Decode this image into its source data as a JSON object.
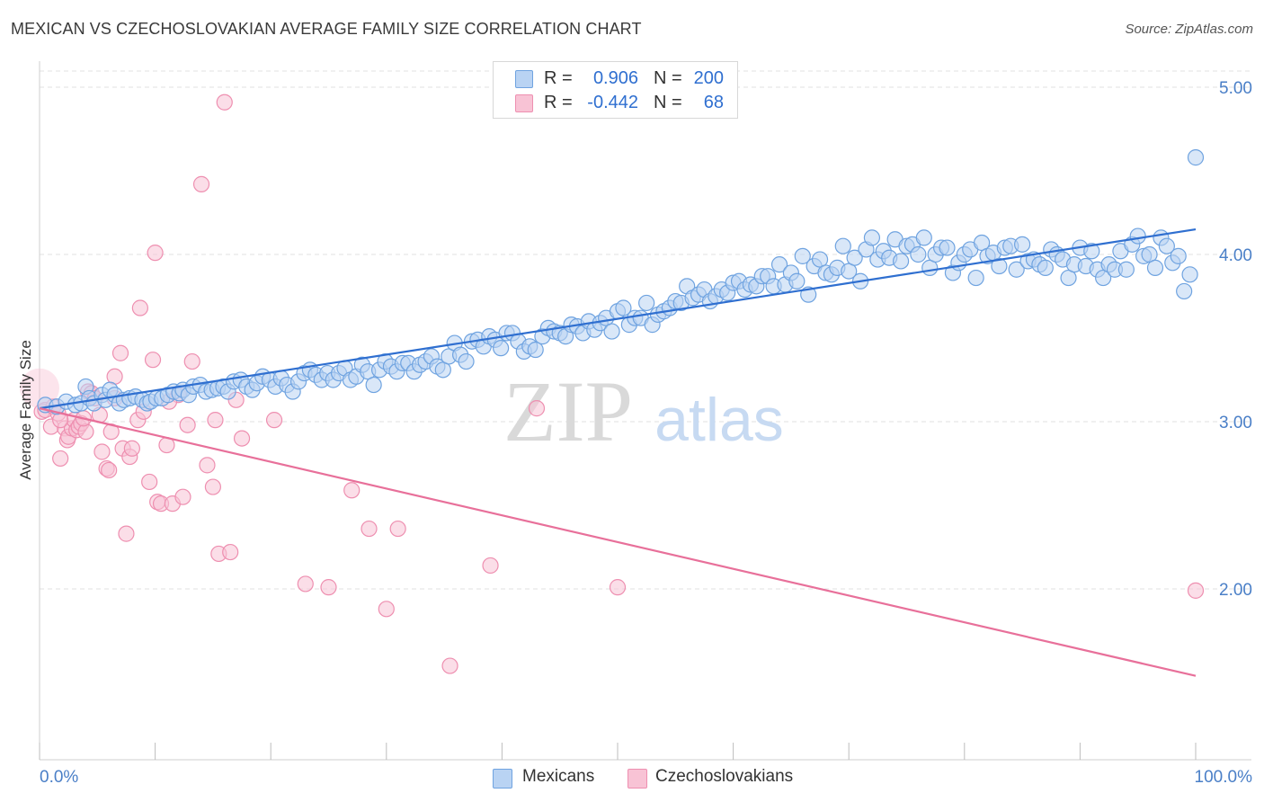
{
  "title": "MEXICAN VS CZECHOSLOVAKIAN AVERAGE FAMILY SIZE CORRELATION CHART",
  "source": "Source: ZipAtlas.com",
  "watermark": {
    "zip": "ZIP",
    "atlas": "atlas"
  },
  "legend": {
    "rows": [
      {
        "r_label": "R =",
        "r_value": "0.906",
        "n_label": "N =",
        "n_value": "200"
      },
      {
        "r_label": "R =",
        "r_value": "-0.442",
        "n_label": "N =",
        "n_value": "68"
      }
    ]
  },
  "bottom_legend": [
    "Mexicans",
    "Czechoslovakians"
  ],
  "colors": {
    "mexicans": "#6fa3e0",
    "mexicans_fill": "#b9d3f3",
    "mexicans_line": "#2f6fd0",
    "czech": "#ee8fb0",
    "czech_fill": "#f8c3d5",
    "czech_line": "#e8709a",
    "tick_label": "#4a7fc7",
    "grid": "#e2e2e2"
  },
  "chart_data": {
    "type": "scatter",
    "ylabel": "Average Family Size",
    "xlim": [
      0,
      100
    ],
    "ylim": [
      1.2,
      5.1
    ],
    "x_tick_labels": [
      "0.0%",
      "100.0%"
    ],
    "y_ticks": [
      2.0,
      3.0,
      4.0,
      5.0
    ],
    "y_tick_labels": [
      "2.00",
      "3.00",
      "4.00",
      "5.00"
    ],
    "grid": true,
    "series": [
      {
        "name": "Mexicans",
        "trend": {
          "x": [
            0,
            100
          ],
          "y": [
            3.08,
            4.15
          ]
        },
        "points": [
          [
            0.5,
            3.1
          ],
          [
            1.5,
            3.09
          ],
          [
            2.3,
            3.12
          ],
          [
            3.1,
            3.1
          ],
          [
            3.6,
            3.11
          ],
          [
            4.0,
            3.21
          ],
          [
            4.3,
            3.14
          ],
          [
            4.7,
            3.11
          ],
          [
            5.4,
            3.16
          ],
          [
            5.7,
            3.13
          ],
          [
            6.1,
            3.19
          ],
          [
            6.5,
            3.16
          ],
          [
            6.9,
            3.11
          ],
          [
            7.3,
            3.13
          ],
          [
            7.8,
            3.14
          ],
          [
            8.3,
            3.15
          ],
          [
            8.9,
            3.13
          ],
          [
            9.3,
            3.11
          ],
          [
            9.6,
            3.12
          ],
          [
            10.1,
            3.14
          ],
          [
            10.6,
            3.14
          ],
          [
            11.1,
            3.16
          ],
          [
            11.6,
            3.18
          ],
          [
            12.1,
            3.17
          ],
          [
            12.4,
            3.19
          ],
          [
            12.9,
            3.16
          ],
          [
            13.3,
            3.21
          ],
          [
            13.9,
            3.22
          ],
          [
            14.4,
            3.18
          ],
          [
            14.9,
            3.19
          ],
          [
            15.4,
            3.2
          ],
          [
            15.9,
            3.21
          ],
          [
            16.3,
            3.18
          ],
          [
            16.8,
            3.24
          ],
          [
            17.4,
            3.25
          ],
          [
            17.9,
            3.21
          ],
          [
            18.4,
            3.19
          ],
          [
            18.8,
            3.23
          ],
          [
            19.3,
            3.27
          ],
          [
            19.9,
            3.25
          ],
          [
            20.4,
            3.21
          ],
          [
            20.9,
            3.26
          ],
          [
            21.4,
            3.22
          ],
          [
            21.9,
            3.18
          ],
          [
            22.4,
            3.24
          ],
          [
            22.9,
            3.29
          ],
          [
            23.4,
            3.31
          ],
          [
            23.9,
            3.28
          ],
          [
            24.4,
            3.25
          ],
          [
            24.9,
            3.29
          ],
          [
            25.4,
            3.25
          ],
          [
            25.9,
            3.29
          ],
          [
            26.4,
            3.32
          ],
          [
            26.9,
            3.25
          ],
          [
            27.4,
            3.27
          ],
          [
            27.9,
            3.34
          ],
          [
            28.4,
            3.3
          ],
          [
            28.9,
            3.22
          ],
          [
            29.4,
            3.31
          ],
          [
            29.9,
            3.36
          ],
          [
            30.4,
            3.33
          ],
          [
            30.9,
            3.3
          ],
          [
            31.4,
            3.35
          ],
          [
            31.9,
            3.35
          ],
          [
            32.4,
            3.3
          ],
          [
            32.9,
            3.34
          ],
          [
            33.4,
            3.36
          ],
          [
            33.9,
            3.39
          ],
          [
            34.4,
            3.33
          ],
          [
            34.9,
            3.31
          ],
          [
            35.4,
            3.39
          ],
          [
            35.9,
            3.47
          ],
          [
            36.4,
            3.4
          ],
          [
            36.9,
            3.36
          ],
          [
            37.4,
            3.48
          ],
          [
            37.9,
            3.49
          ],
          [
            38.4,
            3.45
          ],
          [
            38.9,
            3.51
          ],
          [
            39.4,
            3.49
          ],
          [
            39.9,
            3.44
          ],
          [
            40.4,
            3.53
          ],
          [
            40.9,
            3.53
          ],
          [
            41.4,
            3.48
          ],
          [
            41.9,
            3.42
          ],
          [
            42.4,
            3.45
          ],
          [
            42.9,
            3.43
          ],
          [
            43.5,
            3.51
          ],
          [
            44.0,
            3.56
          ],
          [
            44.5,
            3.54
          ],
          [
            45.0,
            3.53
          ],
          [
            45.5,
            3.51
          ],
          [
            46.0,
            3.58
          ],
          [
            46.5,
            3.57
          ],
          [
            47.0,
            3.53
          ],
          [
            47.5,
            3.6
          ],
          [
            48.0,
            3.55
          ],
          [
            48.5,
            3.59
          ],
          [
            49.0,
            3.62
          ],
          [
            49.5,
            3.54
          ],
          [
            50.0,
            3.66
          ],
          [
            50.5,
            3.68
          ],
          [
            51.0,
            3.58
          ],
          [
            51.5,
            3.62
          ],
          [
            52.0,
            3.62
          ],
          [
            52.5,
            3.71
          ],
          [
            53.0,
            3.58
          ],
          [
            53.5,
            3.64
          ],
          [
            54.0,
            3.66
          ],
          [
            54.5,
            3.68
          ],
          [
            55.0,
            3.72
          ],
          [
            55.5,
            3.71
          ],
          [
            56.0,
            3.81
          ],
          [
            56.5,
            3.74
          ],
          [
            57.0,
            3.76
          ],
          [
            57.5,
            3.79
          ],
          [
            58.0,
            3.72
          ],
          [
            58.5,
            3.75
          ],
          [
            59.0,
            3.79
          ],
          [
            59.5,
            3.77
          ],
          [
            60.0,
            3.83
          ],
          [
            60.5,
            3.84
          ],
          [
            61.0,
            3.79
          ],
          [
            61.5,
            3.82
          ],
          [
            62.0,
            3.81
          ],
          [
            62.5,
            3.87
          ],
          [
            63.0,
            3.87
          ],
          [
            63.5,
            3.81
          ],
          [
            64.0,
            3.94
          ],
          [
            64.5,
            3.82
          ],
          [
            65.0,
            3.89
          ],
          [
            65.5,
            3.84
          ],
          [
            66.0,
            3.99
          ],
          [
            66.5,
            3.76
          ],
          [
            67.0,
            3.93
          ],
          [
            67.5,
            3.97
          ],
          [
            68.0,
            3.89
          ],
          [
            68.5,
            3.88
          ],
          [
            69.0,
            3.92
          ],
          [
            69.5,
            4.05
          ],
          [
            70.0,
            3.9
          ],
          [
            70.5,
            3.98
          ],
          [
            71.0,
            3.84
          ],
          [
            71.5,
            4.03
          ],
          [
            72.0,
            4.1
          ],
          [
            72.5,
            3.97
          ],
          [
            73.0,
            4.02
          ],
          [
            73.5,
            3.98
          ],
          [
            74.0,
            4.09
          ],
          [
            74.5,
            3.96
          ],
          [
            75.0,
            4.05
          ],
          [
            75.5,
            4.06
          ],
          [
            76.0,
            4.0
          ],
          [
            76.5,
            4.1
          ],
          [
            77.0,
            3.92
          ],
          [
            77.5,
            4.0
          ],
          [
            78.0,
            4.04
          ],
          [
            78.5,
            4.04
          ],
          [
            79.0,
            3.89
          ],
          [
            79.5,
            3.95
          ],
          [
            80.0,
            4.0
          ],
          [
            80.5,
            4.03
          ],
          [
            81.0,
            3.86
          ],
          [
            81.5,
            4.07
          ],
          [
            82.0,
            3.99
          ],
          [
            82.5,
            4.01
          ],
          [
            83.0,
            3.93
          ],
          [
            83.5,
            4.04
          ],
          [
            84.0,
            4.05
          ],
          [
            84.5,
            3.91
          ],
          [
            85.0,
            4.06
          ],
          [
            85.5,
            3.96
          ],
          [
            86.0,
            3.97
          ],
          [
            86.5,
            3.94
          ],
          [
            87.0,
            3.92
          ],
          [
            87.5,
            4.03
          ],
          [
            88.0,
            4.0
          ],
          [
            88.5,
            3.97
          ],
          [
            89.0,
            3.86
          ],
          [
            89.5,
            3.94
          ],
          [
            90.0,
            4.04
          ],
          [
            90.5,
            3.93
          ],
          [
            91.0,
            4.02
          ],
          [
            91.5,
            3.91
          ],
          [
            92.0,
            3.86
          ],
          [
            92.5,
            3.94
          ],
          [
            93.0,
            3.91
          ],
          [
            93.5,
            4.02
          ],
          [
            94.0,
            3.91
          ],
          [
            94.5,
            4.06
          ],
          [
            95.0,
            4.11
          ],
          [
            95.5,
            3.99
          ],
          [
            96.0,
            4.0
          ],
          [
            96.5,
            3.92
          ],
          [
            97.0,
            4.1
          ],
          [
            97.5,
            4.05
          ],
          [
            98.0,
            3.95
          ],
          [
            98.5,
            3.99
          ],
          [
            99.0,
            3.78
          ],
          [
            99.5,
            3.88
          ],
          [
            100,
            4.58
          ]
        ]
      },
      {
        "name": "Czechoslovakians",
        "trend": {
          "x": [
            0,
            100
          ],
          "y": [
            3.08,
            1.48
          ]
        },
        "points": [
          [
            0.2,
            3.06
          ],
          [
            0.5,
            3.07
          ],
          [
            1.0,
            2.97
          ],
          [
            1.2,
            3.09
          ],
          [
            1.6,
            3.05
          ],
          [
            1.8,
            2.78
          ],
          [
            2.2,
            2.96
          ],
          [
            2.4,
            2.89
          ],
          [
            2.5,
            2.91
          ],
          [
            2.8,
            2.96
          ],
          [
            3.0,
            3.01
          ],
          [
            3.2,
            2.95
          ],
          [
            3.4,
            2.97
          ],
          [
            3.6,
            2.99
          ],
          [
            4.0,
            2.94
          ],
          [
            4.2,
            3.18
          ],
          [
            4.5,
            3.17
          ],
          [
            4.8,
            3.14
          ],
          [
            5.2,
            3.04
          ],
          [
            5.4,
            2.82
          ],
          [
            5.8,
            2.72
          ],
          [
            6.0,
            2.71
          ],
          [
            6.2,
            2.94
          ],
          [
            6.5,
            3.14
          ],
          [
            7.0,
            3.41
          ],
          [
            7.2,
            2.84
          ],
          [
            7.5,
            2.33
          ],
          [
            7.8,
            2.79
          ],
          [
            8.0,
            2.84
          ],
          [
            8.5,
            3.01
          ],
          [
            8.7,
            3.68
          ],
          [
            9.0,
            3.06
          ],
          [
            9.5,
            2.64
          ],
          [
            10.0,
            4.01
          ],
          [
            10.2,
            2.52
          ],
          [
            10.5,
            2.51
          ],
          [
            11.0,
            2.86
          ],
          [
            11.5,
            2.51
          ],
          [
            12.0,
            3.16
          ],
          [
            12.4,
            2.55
          ],
          [
            12.8,
            2.98
          ],
          [
            13.2,
            3.36
          ],
          [
            14.0,
            4.42
          ],
          [
            14.5,
            2.74
          ],
          [
            15.0,
            2.61
          ],
          [
            15.2,
            3.01
          ],
          [
            15.5,
            2.21
          ],
          [
            16.0,
            4.91
          ],
          [
            16.5,
            2.22
          ],
          [
            17.0,
            3.13
          ],
          [
            17.5,
            2.9
          ],
          [
            20.3,
            3.01
          ],
          [
            23.0,
            2.03
          ],
          [
            25.0,
            2.01
          ],
          [
            27.0,
            2.59
          ],
          [
            28.5,
            2.36
          ],
          [
            30.0,
            1.88
          ],
          [
            31.0,
            2.36
          ],
          [
            35.5,
            1.54
          ],
          [
            39.0,
            2.14
          ],
          [
            43.0,
            3.08
          ],
          [
            50.0,
            2.01
          ],
          [
            100,
            1.99
          ],
          [
            1.8,
            3.01
          ],
          [
            3.8,
            3.02
          ],
          [
            6.5,
            3.27
          ],
          [
            9.8,
            3.37
          ],
          [
            11.2,
            3.12
          ]
        ]
      }
    ]
  }
}
